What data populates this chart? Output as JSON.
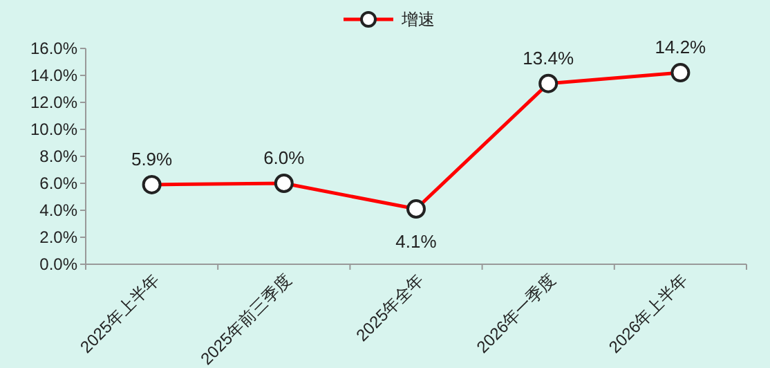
{
  "chart_data": {
    "type": "line",
    "categories": [
      "2025年上半年",
      "2025年前三季度",
      "2025年全年",
      "2026年一季度",
      "2026年上半年"
    ],
    "series": [
      {
        "name": "增速",
        "color": "#ff0000",
        "values": [
          5.9,
          6.0,
          4.1,
          13.4,
          14.2
        ],
        "value_labels": [
          "5.9%",
          "6.0%",
          "4.1%",
          "13.4%",
          "14.2%"
        ]
      }
    ],
    "ylim": [
      0,
      16
    ],
    "yticks": [
      {
        "value": 0,
        "label": "0.0%"
      },
      {
        "value": 2,
        "label": "2.0%"
      },
      {
        "value": 4,
        "label": "4.0%"
      },
      {
        "value": 6,
        "label": "6.0%"
      },
      {
        "value": 8,
        "label": "8.0%"
      },
      {
        "value": 10,
        "label": "10.0%"
      },
      {
        "value": 12,
        "label": "12.0%"
      },
      {
        "value": 14,
        "label": "14.0%"
      },
      {
        "value": 16,
        "label": "16.0%"
      }
    ],
    "marker": "circle",
    "line_style": "solid",
    "legend": "top",
    "grid": false
  }
}
